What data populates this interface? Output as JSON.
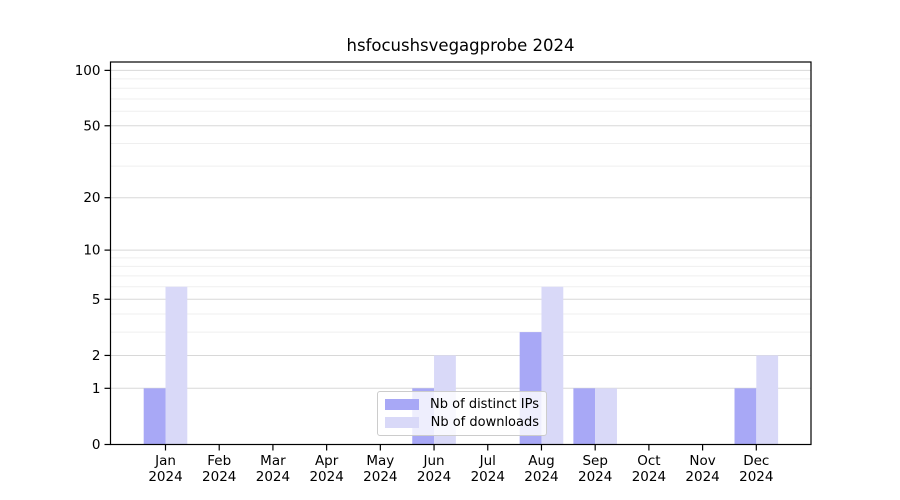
{
  "title": "hsfocushsvegagprobe 2024",
  "legend": {
    "items": [
      {
        "label": "Nb of distinct IPs",
        "color": "#a8a8f6"
      },
      {
        "label": "Nb of downloads",
        "color": "#d9d9f8"
      }
    ]
  },
  "chart_data": {
    "type": "bar",
    "title": "hsfocushsvegagprobe 2024",
    "categories": [
      "Jan 2024",
      "Feb 2024",
      "Mar 2024",
      "Apr 2024",
      "May 2024",
      "Jun 2024",
      "Jul 2024",
      "Aug 2024",
      "Sep 2024",
      "Oct 2024",
      "Nov 2024",
      "Dec 2024"
    ],
    "series": [
      {
        "name": "Nb of distinct IPs",
        "color": "#a8a8f6",
        "values": [
          1,
          0,
          0,
          0,
          0,
          1,
          0,
          3,
          1,
          0,
          0,
          1
        ]
      },
      {
        "name": "Nb of downloads",
        "color": "#d9d9f8",
        "values": [
          6,
          0,
          0,
          0,
          0,
          2,
          0,
          6,
          1,
          0,
          0,
          2
        ]
      }
    ],
    "xlabel": "",
    "ylabel": "",
    "yscale": "log1p",
    "ylim": [
      0,
      111
    ],
    "yticks": [
      0,
      1,
      2,
      5,
      10,
      20,
      50,
      100
    ],
    "minor_yticks": [
      3,
      4,
      6,
      7,
      8,
      9,
      30,
      40,
      60,
      70,
      80,
      90
    ],
    "grid": "horizontal",
    "legend_position": "lower center",
    "colors": {
      "major_grid": "#d8d8d8",
      "minor_grid": "#efefef",
      "axis": "#000000",
      "text": "#000000",
      "background": "#ffffff"
    }
  }
}
